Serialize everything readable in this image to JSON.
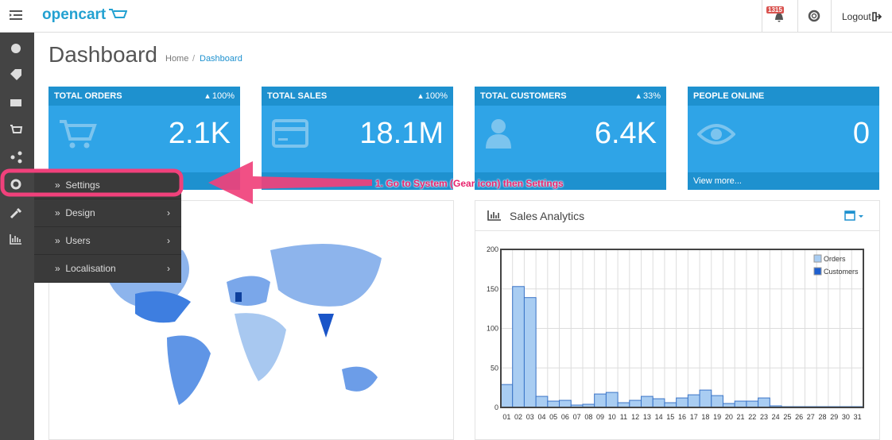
{
  "header": {
    "logo": "opencart",
    "notification_count": "1315",
    "logout": "Logout"
  },
  "page": {
    "title": "Dashboard",
    "breadcrumb": [
      "Home",
      "Dashboard"
    ]
  },
  "tiles": [
    {
      "title": "TOTAL ORDERS",
      "change": "100%",
      "value": "2.1K"
    },
    {
      "title": "TOTAL SALES",
      "change": "100%",
      "value": "18.1M"
    },
    {
      "title": "TOTAL CUSTOMERS",
      "change": "33%",
      "value": "6.4K"
    },
    {
      "title": "PEOPLE ONLINE",
      "value": "0",
      "footer": "View more..."
    }
  ],
  "menu": {
    "items": [
      "Settings",
      "Design",
      "Users",
      "Localisation"
    ]
  },
  "annotation": "1. Go to System (Gear icon) then Settings",
  "chart_data": {
    "type": "bar",
    "title": "Sales Analytics",
    "categories": [
      "01",
      "02",
      "03",
      "04",
      "05",
      "06",
      "07",
      "08",
      "09",
      "10",
      "11",
      "12",
      "13",
      "14",
      "15",
      "16",
      "17",
      "18",
      "19",
      "20",
      "21",
      "22",
      "23",
      "24",
      "25",
      "26",
      "27",
      "28",
      "29",
      "30",
      "31"
    ],
    "series": [
      {
        "name": "Orders",
        "color": "#a9cdf2",
        "values": [
          29,
          153,
          139,
          14,
          8,
          9,
          3,
          4,
          17,
          19,
          6,
          9,
          14,
          11,
          6,
          12,
          16,
          22,
          15,
          5,
          8,
          8,
          12,
          2,
          1,
          1,
          1,
          1,
          1,
          1,
          1
        ]
      },
      {
        "name": "Customers",
        "color": "#1e5fcf",
        "values": [
          0,
          0,
          0,
          0,
          0,
          0,
          0,
          0,
          0,
          0,
          0,
          0,
          0,
          0,
          0,
          0,
          0,
          0,
          0,
          0,
          0,
          0,
          0,
          0,
          0,
          0,
          0,
          0,
          0,
          0,
          0
        ]
      }
    ],
    "ylim": [
      0,
      200
    ],
    "yticks": [
      0,
      50,
      100,
      150,
      200
    ],
    "grid": true,
    "legend": "top-right"
  }
}
